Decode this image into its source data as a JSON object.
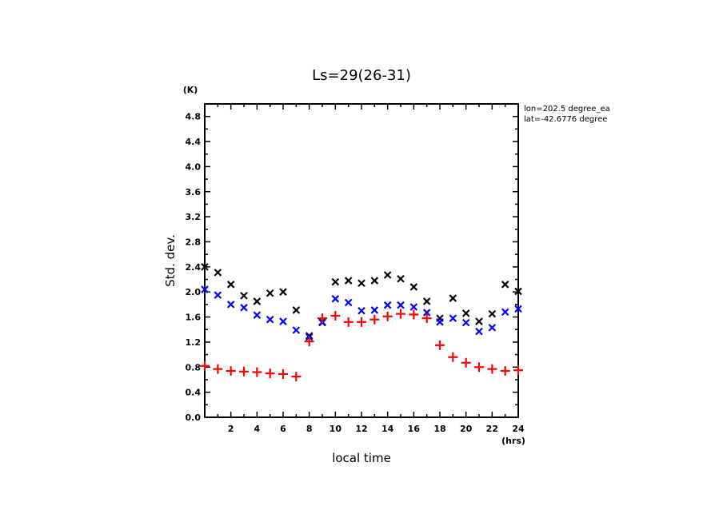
{
  "chart_data": {
    "type": "scatter",
    "title": "Ls=29(26-31)",
    "xlabel": "local time",
    "ylabel": "Std. dev.",
    "x_unit": "(hrs)",
    "y_unit": "(K)",
    "xlim": [
      0,
      24
    ],
    "ylim": [
      0,
      5.0
    ],
    "x_ticks": [
      2,
      4,
      6,
      8,
      10,
      12,
      14,
      16,
      18,
      20,
      22,
      24
    ],
    "y_ticks": [
      "0.0",
      "0.4",
      "0.8",
      "1.2",
      "1.6",
      "2.0",
      "2.4",
      "2.8",
      "3.2",
      "3.6",
      "4.0",
      "4.4",
      "4.8"
    ],
    "grid": false,
    "annotations": [
      "lon=202.5 degree_ea",
      "lat=-42.6776 degree"
    ],
    "x": [
      0,
      1,
      2,
      3,
      4,
      5,
      6,
      7,
      8,
      9,
      10,
      11,
      12,
      13,
      14,
      15,
      16,
      17,
      18,
      19,
      20,
      21,
      22,
      23,
      24
    ],
    "series": [
      {
        "name": "black",
        "marker": "x",
        "color": "#000000",
        "values": [
          2.4,
          2.31,
          2.12,
          1.94,
          1.85,
          1.98,
          2.0,
          1.71,
          1.3,
          1.52,
          2.16,
          2.18,
          2.14,
          2.18,
          2.27,
          2.21,
          2.08,
          1.85,
          1.58,
          1.9,
          1.66,
          1.53,
          1.65,
          2.12,
          2.01
        ]
      },
      {
        "name": "blue",
        "marker": "x",
        "color": "#0000ff",
        "values": [
          2.04,
          1.95,
          1.8,
          1.75,
          1.63,
          1.56,
          1.53,
          1.39,
          1.28,
          1.51,
          1.89,
          1.83,
          1.7,
          1.71,
          1.79,
          1.79,
          1.76,
          1.67,
          1.52,
          1.58,
          1.51,
          1.37,
          1.43,
          1.68,
          1.73
        ]
      },
      {
        "name": "red",
        "marker": "+",
        "color": "#ff0000",
        "values": [
          0.82,
          0.77,
          0.74,
          0.73,
          0.72,
          0.7,
          0.69,
          0.65,
          1.21,
          1.58,
          1.62,
          1.52,
          1.52,
          1.56,
          1.61,
          1.65,
          1.64,
          1.58,
          1.15,
          0.96,
          0.87,
          0.8,
          0.77,
          0.74,
          0.75
        ]
      }
    ]
  }
}
